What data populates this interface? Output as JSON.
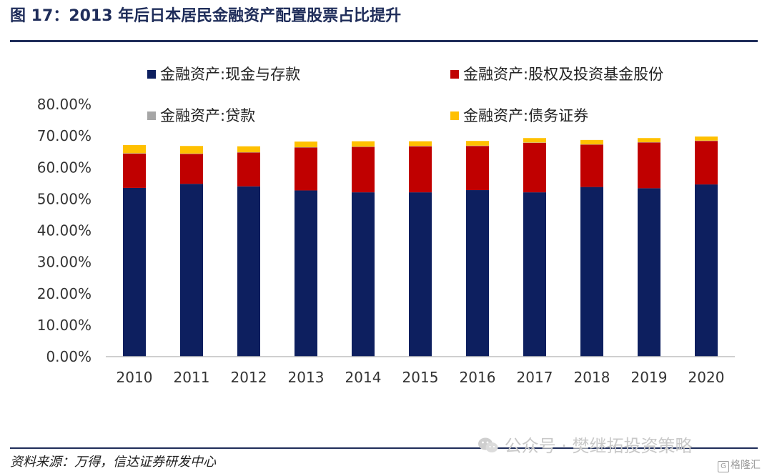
{
  "figure": {
    "title": "图 17：2013 年后日本居民金融资产配置股票占比提升",
    "source": "资料来源：万得，信达证券研发中心",
    "watermark": "公众号 · 樊继拓投资策略",
    "badge": "格隆汇",
    "badge_mark": "G"
  },
  "chart_data": {
    "type": "bar",
    "stacked": true,
    "categories": [
      "2010",
      "2011",
      "2012",
      "2013",
      "2014",
      "2015",
      "2016",
      "2017",
      "2018",
      "2019",
      "2020"
    ],
    "series": [
      {
        "name": "金融资产:现金与存款",
        "color": "#0d1f5f",
        "values": [
          53.5,
          54.8,
          54.0,
          52.7,
          52.1,
          52.1,
          52.8,
          52.1,
          53.8,
          53.4,
          54.6
        ]
      },
      {
        "name": "金融资产:股权及投资基金股份",
        "color": "#c00000",
        "values": [
          10.9,
          9.5,
          10.7,
          13.6,
          14.4,
          14.6,
          14.0,
          15.7,
          13.4,
          14.5,
          13.8
        ]
      },
      {
        "name": "金融资产:贷款",
        "color": "#a6a6a6",
        "values": [
          0.1,
          0.1,
          0.1,
          0.1,
          0.1,
          0.1,
          0.1,
          0.1,
          0.1,
          0.1,
          0.1
        ]
      },
      {
        "name": "金融资产:债务证券",
        "color": "#ffc000",
        "values": [
          2.6,
          2.4,
          1.9,
          1.8,
          1.7,
          1.5,
          1.5,
          1.4,
          1.4,
          1.3,
          1.3
        ]
      }
    ],
    "ylim": [
      0,
      80
    ],
    "ytick_labels": [
      "0.00%",
      "10.00%",
      "20.00%",
      "30.00%",
      "40.00%",
      "50.00%",
      "60.00%",
      "70.00%",
      "80.00%"
    ],
    "grid": false,
    "legend": "top"
  }
}
